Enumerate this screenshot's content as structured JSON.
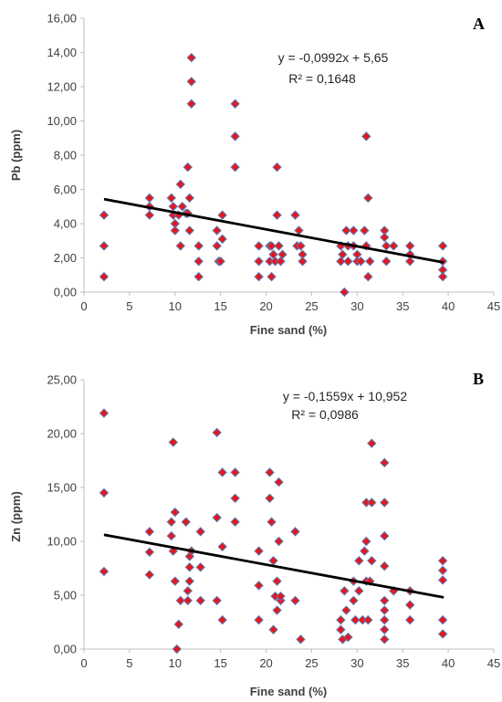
{
  "colors": {
    "marker_fill": "#e8161b",
    "marker_stroke": "#5b7bb4",
    "trendline": "#000000",
    "axis": "#bfbfbf"
  },
  "chart_data": [
    {
      "type": "scatter",
      "panel": "A",
      "xlabel": "Fine sand (%)",
      "ylabel": "Pb (ppm)",
      "xlim": [
        0,
        45
      ],
      "ylim": [
        0,
        16
      ],
      "x_ticks": [
        "0",
        "5",
        "10",
        "15",
        "20",
        "25",
        "30",
        "35",
        "40",
        "45"
      ],
      "y_ticks": [
        "0,00",
        "2,00",
        "4,00",
        "6,00",
        "8,00",
        "10,00",
        "12,00",
        "14,00",
        "16,00"
      ],
      "grid": false,
      "trendline": {
        "slope": -0.0992,
        "intercept": 5.65,
        "x_range": [
          2.2,
          39.5
        ]
      },
      "equation": "y = -0,0992x + 5,65",
      "r2": "R² = 0,1648",
      "points": [
        [
          2.2,
          4.5
        ],
        [
          2.2,
          2.7
        ],
        [
          2.2,
          0.9
        ],
        [
          7.2,
          5.5
        ],
        [
          7.2,
          5.0
        ],
        [
          7.2,
          4.5
        ],
        [
          9.6,
          5.5
        ],
        [
          9.8,
          5.0
        ],
        [
          9.8,
          4.5
        ],
        [
          10.0,
          4.0
        ],
        [
          10.0,
          3.6
        ],
        [
          10.4,
          4.5
        ],
        [
          10.6,
          6.3
        ],
        [
          10.6,
          2.7
        ],
        [
          10.8,
          5.0
        ],
        [
          11.2,
          4.6
        ],
        [
          11.4,
          4.6
        ],
        [
          11.4,
          7.3
        ],
        [
          11.6,
          3.6
        ],
        [
          11.6,
          5.5
        ],
        [
          11.8,
          13.7
        ],
        [
          11.8,
          12.3
        ],
        [
          11.8,
          11.0
        ],
        [
          12.6,
          2.7
        ],
        [
          12.6,
          1.8
        ],
        [
          12.6,
          0.9
        ],
        [
          14.6,
          2.7
        ],
        [
          14.6,
          3.6
        ],
        [
          14.8,
          1.8
        ],
        [
          15.0,
          1.8
        ],
        [
          15.2,
          4.5
        ],
        [
          15.2,
          3.1
        ],
        [
          16.6,
          11.0
        ],
        [
          16.6,
          9.1
        ],
        [
          16.6,
          7.3
        ],
        [
          19.2,
          2.7
        ],
        [
          19.2,
          1.8
        ],
        [
          19.2,
          0.9
        ],
        [
          20.4,
          2.7
        ],
        [
          20.4,
          1.8
        ],
        [
          20.6,
          0.9
        ],
        [
          20.6,
          2.7
        ],
        [
          20.8,
          2.2
        ],
        [
          21.0,
          1.8
        ],
        [
          21.2,
          7.3
        ],
        [
          21.2,
          4.5
        ],
        [
          21.4,
          2.7
        ],
        [
          21.6,
          1.8
        ],
        [
          21.8,
          2.2
        ],
        [
          23.2,
          4.5
        ],
        [
          23.4,
          2.7
        ],
        [
          23.6,
          3.6
        ],
        [
          23.8,
          2.7
        ],
        [
          24.0,
          2.2
        ],
        [
          24.0,
          1.8
        ],
        [
          28.2,
          2.7
        ],
        [
          28.2,
          1.8
        ],
        [
          28.4,
          2.2
        ],
        [
          28.6,
          0.0
        ],
        [
          28.8,
          3.6
        ],
        [
          29.0,
          2.7
        ],
        [
          29.0,
          1.8
        ],
        [
          29.6,
          3.6
        ],
        [
          29.6,
          2.7
        ],
        [
          30.0,
          2.2
        ],
        [
          30.0,
          1.8
        ],
        [
          30.4,
          1.8
        ],
        [
          30.8,
          3.6
        ],
        [
          31.0,
          9.1
        ],
        [
          31.0,
          2.7
        ],
        [
          31.2,
          5.5
        ],
        [
          31.4,
          1.8
        ],
        [
          31.2,
          0.9
        ],
        [
          33.0,
          3.6
        ],
        [
          33.0,
          3.2
        ],
        [
          33.2,
          2.7
        ],
        [
          33.2,
          1.8
        ],
        [
          34.0,
          2.7
        ],
        [
          35.8,
          2.7
        ],
        [
          35.8,
          2.2
        ],
        [
          35.8,
          1.8
        ],
        [
          39.4,
          2.7
        ],
        [
          39.4,
          1.8
        ],
        [
          39.4,
          1.3
        ],
        [
          39.4,
          0.9
        ]
      ]
    },
    {
      "type": "scatter",
      "panel": "B",
      "xlabel": "Fine sand (%)",
      "ylabel": "Zn (ppm)",
      "xlim": [
        0,
        45
      ],
      "ylim": [
        0,
        25
      ],
      "x_ticks": [
        "0",
        "5",
        "10",
        "15",
        "20",
        "25",
        "30",
        "35",
        "40",
        "45"
      ],
      "y_ticks": [
        "0,00",
        "5,00",
        "10,00",
        "15,00",
        "20,00",
        "25,00"
      ],
      "grid": false,
      "trendline": {
        "slope": -0.1559,
        "intercept": 10.952,
        "x_range": [
          2.2,
          39.5
        ]
      },
      "equation": "y = -0,1559x + 10,952",
      "r2": "R² = 0,0986",
      "points": [
        [
          2.2,
          21.9
        ],
        [
          2.2,
          14.5
        ],
        [
          2.2,
          7.2
        ],
        [
          7.2,
          10.9
        ],
        [
          7.2,
          9.0
        ],
        [
          7.2,
          6.9
        ],
        [
          9.6,
          11.8
        ],
        [
          9.6,
          10.5
        ],
        [
          9.8,
          19.2
        ],
        [
          9.8,
          9.1
        ],
        [
          10.0,
          6.3
        ],
        [
          10.0,
          12.7
        ],
        [
          10.2,
          0.0
        ],
        [
          10.4,
          2.3
        ],
        [
          10.6,
          4.5
        ],
        [
          11.2,
          11.8
        ],
        [
          11.4,
          4.5
        ],
        [
          11.4,
          5.4
        ],
        [
          11.6,
          6.3
        ],
        [
          11.6,
          7.6
        ],
        [
          11.6,
          8.6
        ],
        [
          11.8,
          9.1
        ],
        [
          12.8,
          10.9
        ],
        [
          12.8,
          7.6
        ],
        [
          12.8,
          4.5
        ],
        [
          14.6,
          20.1
        ],
        [
          14.6,
          12.2
        ],
        [
          14.6,
          4.5
        ],
        [
          15.2,
          16.4
        ],
        [
          15.2,
          9.5
        ],
        [
          15.2,
          2.7
        ],
        [
          16.6,
          16.4
        ],
        [
          16.6,
          14.0
        ],
        [
          16.6,
          11.8
        ],
        [
          19.2,
          9.1
        ],
        [
          19.2,
          5.9
        ],
        [
          19.2,
          2.7
        ],
        [
          20.4,
          16.4
        ],
        [
          20.4,
          14.0
        ],
        [
          20.6,
          11.8
        ],
        [
          20.8,
          8.2
        ],
        [
          20.8,
          1.8
        ],
        [
          21.0,
          4.9
        ],
        [
          21.2,
          6.3
        ],
        [
          21.2,
          3.6
        ],
        [
          21.4,
          15.5
        ],
        [
          21.4,
          10.0
        ],
        [
          21.6,
          4.5
        ],
        [
          21.6,
          4.9
        ],
        [
          23.2,
          10.9
        ],
        [
          23.2,
          4.5
        ],
        [
          23.8,
          0.9
        ],
        [
          28.2,
          2.7
        ],
        [
          28.2,
          1.8
        ],
        [
          28.4,
          0.9
        ],
        [
          28.6,
          5.4
        ],
        [
          28.8,
          3.6
        ],
        [
          29.0,
          1.1
        ],
        [
          29.6,
          6.3
        ],
        [
          29.6,
          4.5
        ],
        [
          29.8,
          2.7
        ],
        [
          30.2,
          8.2
        ],
        [
          30.2,
          5.4
        ],
        [
          30.6,
          2.7
        ],
        [
          30.8,
          9.1
        ],
        [
          31.0,
          13.6
        ],
        [
          31.0,
          10.0
        ],
        [
          31.0,
          6.3
        ],
        [
          31.2,
          2.7
        ],
        [
          31.4,
          6.3
        ],
        [
          31.6,
          19.1
        ],
        [
          31.6,
          13.6
        ],
        [
          31.6,
          8.2
        ],
        [
          33.0,
          17.3
        ],
        [
          33.0,
          13.6
        ],
        [
          33.0,
          10.5
        ],
        [
          33.0,
          7.7
        ],
        [
          33.0,
          4.5
        ],
        [
          33.0,
          3.6
        ],
        [
          33.0,
          2.7
        ],
        [
          33.0,
          1.8
        ],
        [
          33.0,
          0.9
        ],
        [
          34.0,
          5.4
        ],
        [
          35.8,
          5.4
        ],
        [
          35.8,
          4.1
        ],
        [
          35.8,
          2.7
        ],
        [
          39.4,
          8.2
        ],
        [
          39.4,
          7.3
        ],
        [
          39.4,
          6.4
        ],
        [
          39.4,
          2.7
        ],
        [
          39.4,
          1.4
        ]
      ]
    }
  ]
}
